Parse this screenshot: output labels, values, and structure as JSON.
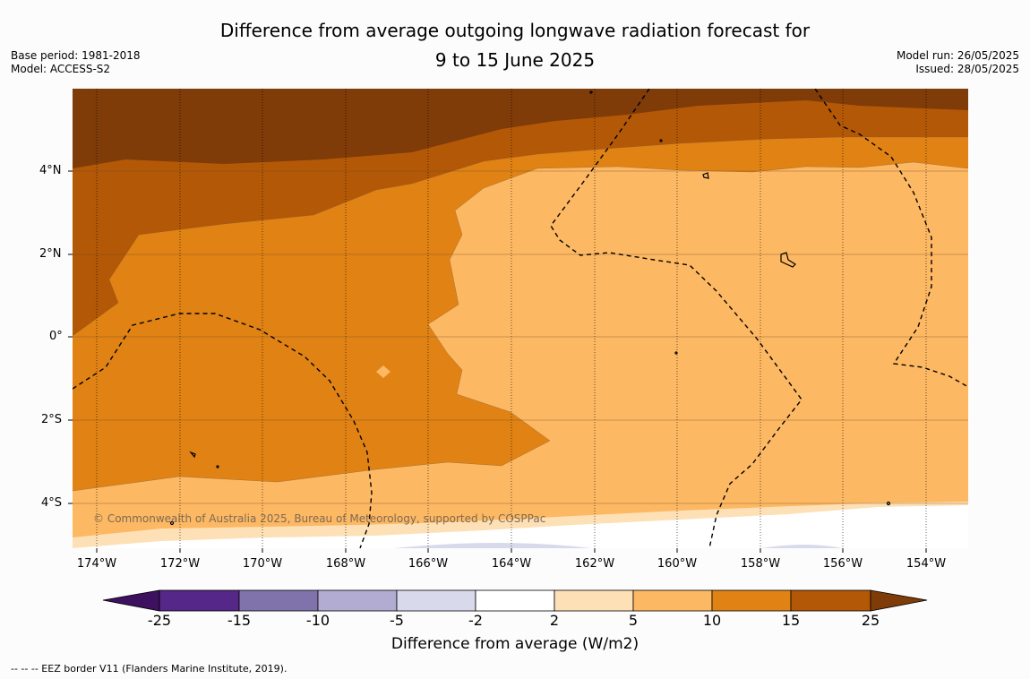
{
  "title_line1": "Difference from average outgoing longwave radiation forecast for",
  "title_line2": "9 to 15 June 2025",
  "base_period": "Base period: 1981-2018",
  "model": "Model: ACCESS-S2",
  "model_run": "Model run: 26/05/2025",
  "issued": "Issued: 28/05/2025",
  "copyright": "© Commonwealth of Australia 2025, Bureau of Meteorology, supported by COSPPac",
  "lat_labels": [
    "4°N",
    "2°N",
    "0°",
    "2°S",
    "4°S"
  ],
  "lon_labels": [
    "174°W",
    "172°W",
    "170°W",
    "168°W",
    "166°W",
    "164°W",
    "162°W",
    "160°W",
    "158°W",
    "156°W",
    "154°W"
  ],
  "colorbar": {
    "label": "Difference from average (W/m2)",
    "ticks": [
      "-25",
      "-15",
      "-10",
      "-5",
      "-2",
      "2",
      "5",
      "10",
      "15",
      "25"
    ],
    "colors": [
      "#3d1060",
      "#542788",
      "#8073ac",
      "#b2abd2",
      "#d8daeb",
      "#ffffff",
      "#fee0b6",
      "#fdb863",
      "#e08214",
      "#b35806",
      "#7f3b08"
    ]
  },
  "footnote": "--  --  -- EEZ border V11 (Flanders Marine Institute, 2019)."
}
